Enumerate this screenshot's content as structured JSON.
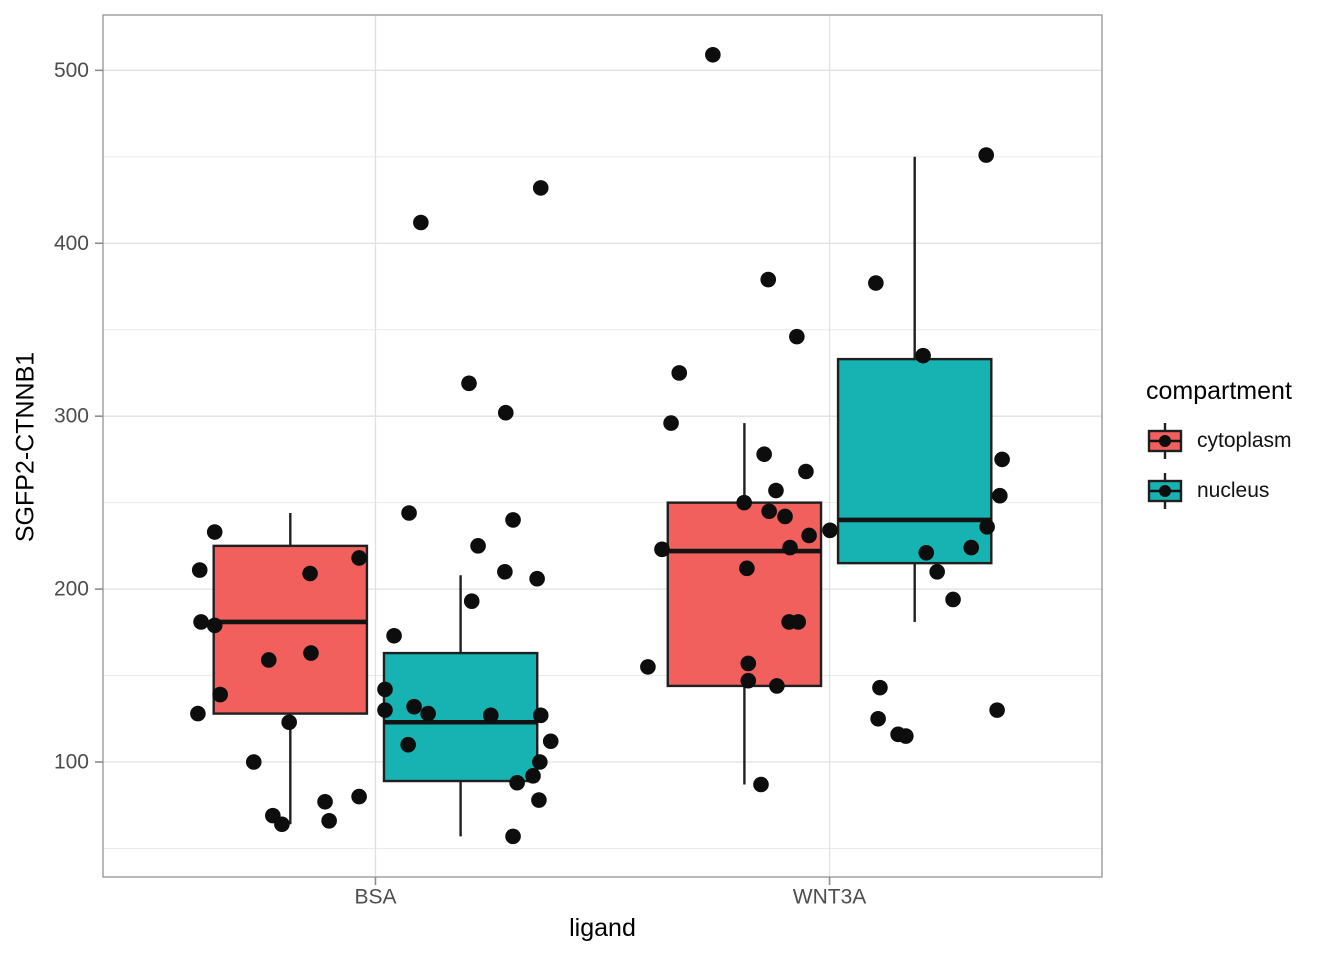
{
  "axes": {
    "x_title": "ligand",
    "y_title": "SGFP2-CTNNB1",
    "x_categories": [
      "BSA",
      "WNT3A"
    ],
    "y_ticks": [
      100,
      200,
      300,
      400,
      500
    ],
    "y_minor_ticks": [
      50,
      150,
      250,
      350,
      450
    ]
  },
  "legend": {
    "title": "compartment",
    "entries": [
      {
        "label": "cytoplasm",
        "color": "#F2605E"
      },
      {
        "label": "nucleus",
        "color": "#17B3B3"
      }
    ]
  },
  "style": {
    "panel_border": "#9B9B9B",
    "grid_major": "#E1E1E1",
    "grid_minor": "#EBEBEB",
    "box_stroke": "#1F1F1F",
    "median_stroke": "#131313",
    "point_color": "#0D0D0D",
    "tick_color": "#8C8C8C",
    "tick_label_color": "#4D4D4D"
  },
  "chart_data": {
    "type": "boxplot_with_jitter",
    "title": "",
    "xlabel": "ligand",
    "ylabel": "SGFP2-CTNNB1",
    "x_categories": [
      "BSA",
      "WNT3A"
    ],
    "y_ticks": [
      100,
      200,
      300,
      400,
      500
    ],
    "y_minor_ticks": [
      50,
      150,
      250,
      350,
      450
    ],
    "ylim": [
      33.5,
      532
    ],
    "grid": true,
    "legend_position": "right",
    "dodge_offset": 0.1875,
    "box_halfwidth": 0.16875,
    "groups": [
      {
        "ligand": "BSA",
        "compartment": "cytoplasm",
        "color": "#F2605E",
        "whisker_low": 64,
        "q1": 128,
        "median": 181,
        "q3": 225,
        "whisker_high": 244
      },
      {
        "ligand": "BSA",
        "compartment": "nucleus",
        "color": "#17B3B3",
        "whisker_low": 57,
        "q1": 89,
        "median": 123,
        "q3": 163,
        "whisker_high": 208
      },
      {
        "ligand": "WNT3A",
        "compartment": "cytoplasm",
        "color": "#F2605E",
        "whisker_low": 87,
        "q1": 144,
        "median": 222,
        "q3": 250,
        "whisker_high": 296
      },
      {
        "ligand": "WNT3A",
        "compartment": "nucleus",
        "color": "#17B3B3",
        "whisker_low": 181,
        "q1": 215,
        "median": 240,
        "q3": 333,
        "whisker_high": 450
      }
    ],
    "jitter_points": {
      "BSA": [
        [
          -0.354,
          233
        ],
        [
          -0.387,
          211
        ],
        [
          -0.036,
          218
        ],
        [
          -0.144,
          209
        ],
        [
          -0.384,
          181
        ],
        [
          -0.354,
          179
        ],
        [
          -0.142,
          163
        ],
        [
          -0.235,
          159
        ],
        [
          -0.342,
          139
        ],
        [
          -0.391,
          128
        ],
        [
          -0.19,
          123
        ],
        [
          -0.268,
          100
        ],
        [
          -0.036,
          80
        ],
        [
          -0.111,
          77
        ],
        [
          -0.226,
          69
        ],
        [
          -0.102,
          66
        ],
        [
          -0.206,
          64
        ],
        [
          0.074,
          244
        ],
        [
          0.303,
          240
        ],
        [
          0.226,
          225
        ],
        [
          0.285,
          210
        ],
        [
          0.356,
          206
        ],
        [
          0.212,
          193
        ],
        [
          0.041,
          173
        ],
        [
          0.021,
          142
        ],
        [
          0.085,
          132
        ],
        [
          0.021,
          130
        ],
        [
          0.116,
          128
        ],
        [
          0.254,
          127
        ],
        [
          0.364,
          127
        ],
        [
          0.386,
          112
        ],
        [
          0.072,
          110
        ],
        [
          0.362,
          100
        ],
        [
          0.347,
          92
        ],
        [
          0.312,
          88
        ],
        [
          0.36,
          78
        ],
        [
          0.303,
          57
        ],
        [
          0.1,
          412
        ],
        [
          0.364,
          432
        ],
        [
          0.206,
          319
        ],
        [
          0.287,
          302
        ]
      ],
      "WNT3A": [
        [
          -0.257,
          509
        ],
        [
          0.345,
          451
        ],
        [
          -0.135,
          379
        ],
        [
          0.102,
          377
        ],
        [
          -0.072,
          346
        ],
        [
          0.206,
          335
        ],
        [
          -0.331,
          325
        ],
        [
          -0.349,
          296
        ],
        [
          -0.144,
          278
        ],
        [
          0.38,
          275
        ],
        [
          -0.052,
          268
        ],
        [
          -0.118,
          257
        ],
        [
          0.375,
          254
        ],
        [
          -0.188,
          250
        ],
        [
          -0.133,
          245
        ],
        [
          -0.098,
          242
        ],
        [
          0.347,
          236
        ],
        [
          0.001,
          234
        ],
        [
          -0.045,
          231
        ],
        [
          -0.087,
          224
        ],
        [
          0.312,
          224
        ],
        [
          -0.369,
          223
        ],
        [
          0.213,
          221
        ],
        [
          -0.182,
          212
        ],
        [
          0.237,
          210
        ],
        [
          0.272,
          194
        ],
        [
          -0.089,
          181
        ],
        [
          -0.069,
          181
        ],
        [
          -0.179,
          157
        ],
        [
          -0.4,
          155
        ],
        [
          -0.179,
          147
        ],
        [
          -0.116,
          144
        ],
        [
          0.111,
          143
        ],
        [
          0.369,
          130
        ],
        [
          0.107,
          125
        ],
        [
          0.151,
          116
        ],
        [
          0.168,
          115
        ],
        [
          -0.151,
          87
        ]
      ]
    }
  }
}
